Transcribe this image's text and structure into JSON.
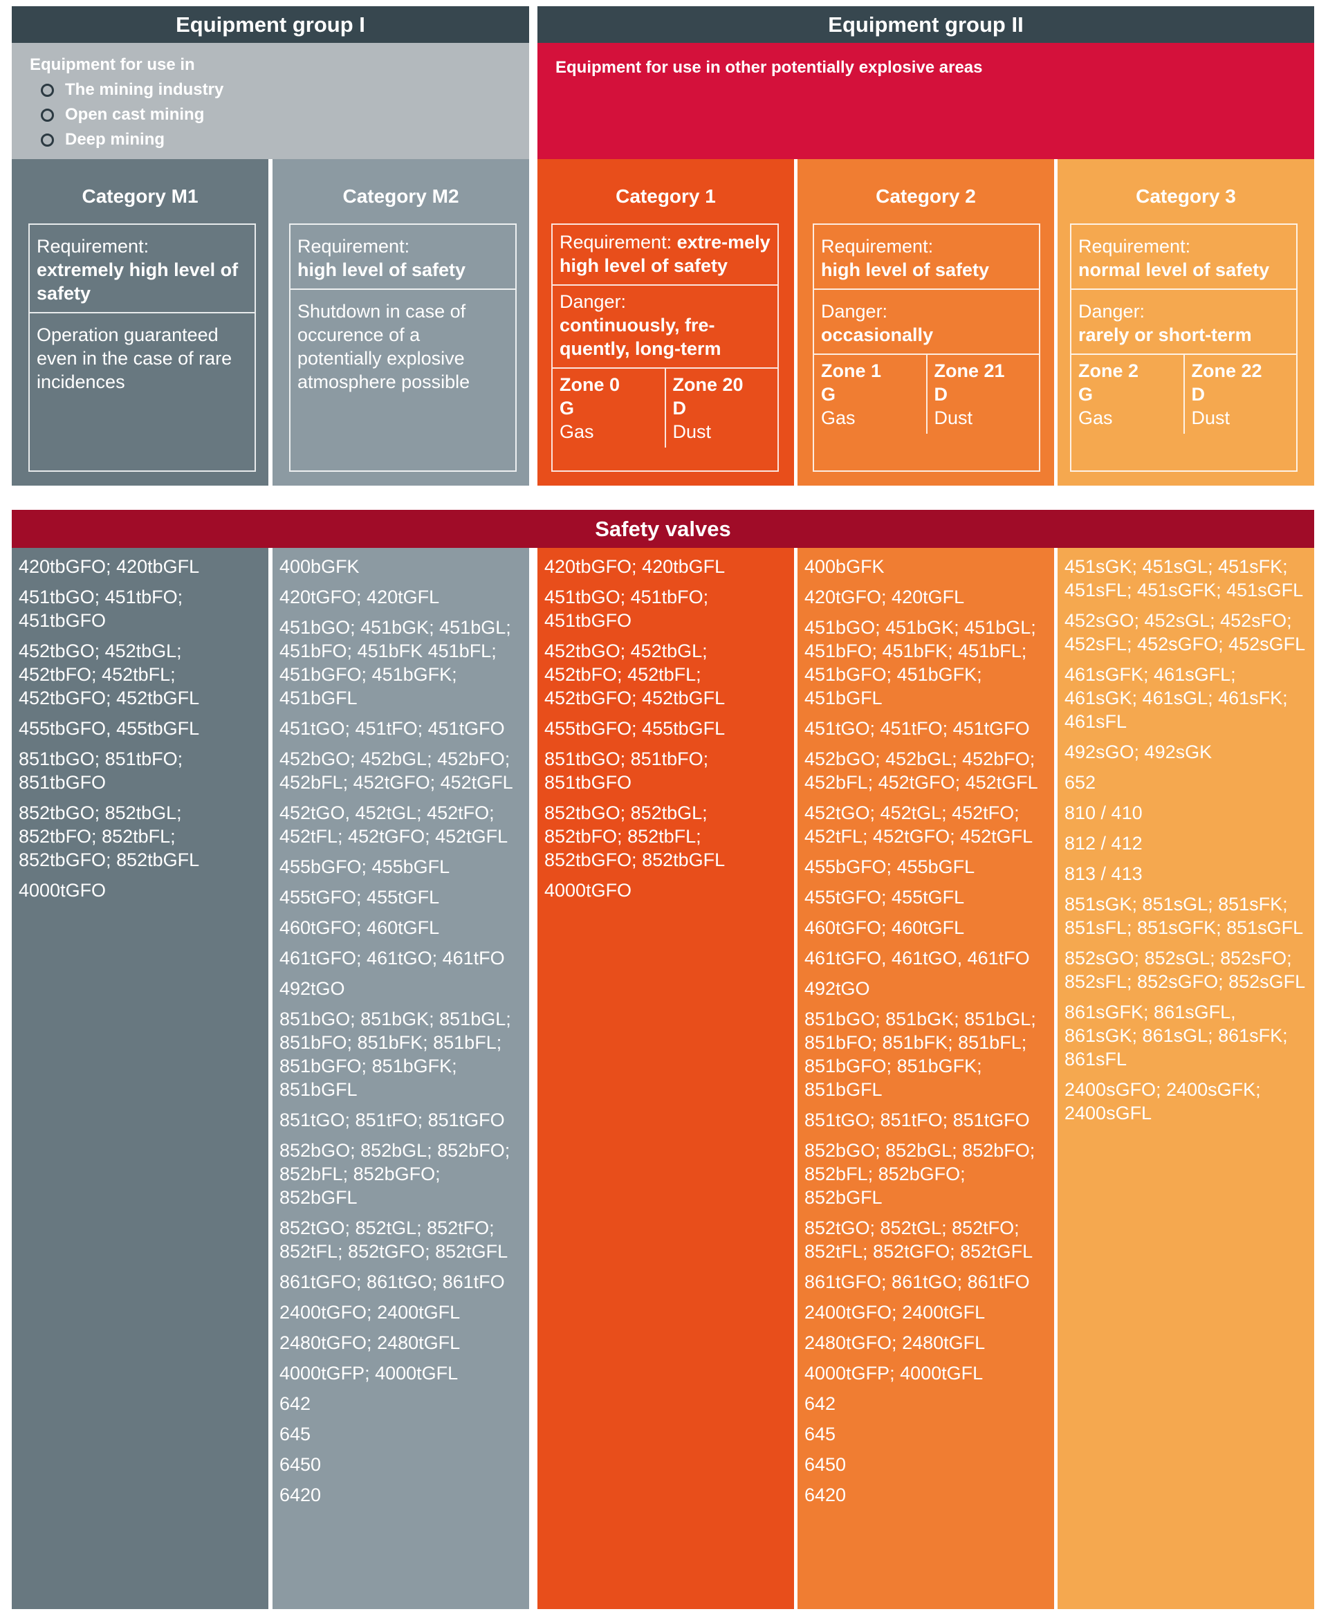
{
  "group1": {
    "title": "Equipment group I",
    "intro": "Equipment for use in",
    "bullets": [
      "The mining industry",
      "Open cast mining",
      "Deep mining"
    ]
  },
  "group2": {
    "title": "Equipment group II",
    "intro": "Equipment for use in other potentially explosive areas"
  },
  "categories": [
    {
      "title": "Category M1",
      "req_label": "Requirement:",
      "req_value": "extremely high level of safety",
      "note": "Operation guaranteed even in the case of rare incidences"
    },
    {
      "title": "Category M2",
      "req_label": "Requirement:",
      "req_value": "high level of safety",
      "note": "Shutdown in case of occurence of a potentially explosive atmosphere possible"
    },
    {
      "title": "Category 1",
      "req_label": "Requirement:",
      "req_value": "extre-mely high level of safety",
      "danger_label": "Danger:",
      "danger_value": "continuously, fre-quently, long-term",
      "zones": [
        {
          "zone": "Zone 0",
          "code": "G",
          "type": "Gas"
        },
        {
          "zone": "Zone 20",
          "code": "D",
          "type": "Dust"
        }
      ]
    },
    {
      "title": "Category 2",
      "req_label": "Requirement:",
      "req_value": "high level of safety",
      "danger_label": "Danger:",
      "danger_value": "occasionally",
      "zones": [
        {
          "zone": "Zone 1",
          "code": "G",
          "type": "Gas"
        },
        {
          "zone": "Zone 21",
          "code": "D",
          "type": "Dust"
        }
      ]
    },
    {
      "title": "Category 3",
      "req_label": "Requirement:",
      "req_value": "normal level of safety",
      "danger_label": "Danger:",
      "danger_value": "rarely or short-term",
      "zones": [
        {
          "zone": "Zone 2",
          "code": "G",
          "type": "Gas"
        },
        {
          "zone": "Zone 22",
          "code": "D",
          "type": "Dust"
        }
      ]
    }
  ],
  "safety_valves": {
    "title": "Safety valves",
    "columns": [
      [
        "420tbGFO; 420tbGFL",
        "451tbGO; 451tbFO; 451tbGFO",
        "452tbGO; 452tbGL; 452tbFO; 452tbFL; 452tbGFO; 452tbGFL",
        "455tbGFO, 455tbGFL",
        "851tbGO; 851tbFO; 851tbGFO",
        "852tbGO; 852tbGL; 852tbFO; 852tbFL; 852tbGFO; 852tbGFL",
        "4000tGFO"
      ],
      [
        "400bGFK",
        "420tGFO; 420tGFL",
        "451bGO; 451bGK; 451bGL; 451bFO; 451bFK 451bFL; 451bGFO; 451bGFK; 451bGFL",
        "451tGO; 451tFO; 451tGFO",
        "452bGO; 452bGL; 452bFO; 452bFL; 452tGFO; 452tGFL",
        "452tGO, 452tGL; 452tFO; 452tFL; 452tGFO; 452tGFL",
        "455bGFO; 455bGFL",
        "455tGFO; 455tGFL",
        "460tGFO; 460tGFL",
        "461tGFO; 461tGO; 461tFO",
        "492tGO",
        "851bGO; 851bGK; 851bGL; 851bFO; 851bFK; 851bFL; 851bGFO; 851bGFK; 851bGFL",
        "851tGO; 851tFO; 851tGFO",
        "852bGO; 852bGL; 852bFO; 852bFL; 852bGFO; 852bGFL",
        "852tGO; 852tGL; 852tFO; 852tFL; 852tGFO; 852tGFL",
        "861tGFO; 861tGO; 861tFO",
        "2400tGFO; 2400tGFL",
        "2480tGFO; 2480tGFL",
        "4000tGFP; 4000tGFL",
        "642",
        "645",
        "6450",
        "6420"
      ],
      [
        "420tbGFO; 420tbGFL",
        "451tbGO; 451tbFO; 451tbGFO",
        "452tbGO; 452tbGL; 452tbFO; 452tbFL; 452tbGFO; 452tbGFL",
        "455tbGFO; 455tbGFL",
        "851tbGO; 851tbFO; 851tbGFO",
        "852tbGO; 852tbGL; 852tbFO; 852tbFL; 852tbGFO; 852tbGFL",
        "4000tGFO"
      ],
      [
        "400bGFK",
        "420tGFO; 420tGFL",
        "451bGO; 451bGK; 451bGL; 451bFO; 451bFK; 451bFL; 451bGFO; 451bGFK; 451bGFL",
        "451tGO; 451tFO; 451tGFO",
        "452bGO; 452bGL; 452bFO; 452bFL; 452tGFO; 452tGFL",
        "452tGO; 452tGL; 452tFO; 452tFL; 452tGFO; 452tGFL",
        "455bGFO; 455bGFL",
        "455tGFO; 455tGFL",
        "460tGFO; 460tGFL",
        "461tGFO, 461tGO, 461tFO",
        "492tGO",
        "851bGO; 851bGK; 851bGL; 851bFO; 851bFK; 851bFL; 851bGFO; 851bGFK; 851bGFL",
        "851tGO; 851tFO; 851tGFO",
        "852bGO; 852bGL; 852bFO; 852bFL; 852bGFO; 852bGFL",
        "852tGO; 852tGL; 852tFO; 852tFL; 852tGFO; 852tGFL",
        "861tGFO; 861tGO; 861tFO",
        "2400tGFO; 2400tGFL",
        "2480tGFO; 2480tGFL",
        "4000tGFP; 4000tGFL",
        "642",
        "645",
        "6450",
        "6420"
      ],
      [
        "451sGK; 451sGL; 451sFK; 451sFL; 451sGFK; 451sGFL",
        "452sGO; 452sGL; 452sFO; 452sFL; 452sGFO; 452sGFL",
        "461sGFK; 461sGFL; 461sGK; 461sGL; 461sFK; 461sFL",
        "492sGO; 492sGK",
        "652",
        "810 / 410",
        "812 / 412",
        "813 / 413",
        "851sGK; 851sGL; 851sFK; 851sFL; 851sGFK; 851sGFL",
        "852sGO; 852sGL; 852sFO; 852sFL; 852sGFO; 852sGFL",
        "861sGFK; 861sGFL, 861sGK; 861sGL; 861sFK; 861sFL",
        "2400sGFO; 2400sGFK; 2400sGFL"
      ]
    ]
  },
  "colors": {
    "header_dark": "#37474f",
    "group1_bg": "#b3b9bd",
    "group2_bg": "#d4113b",
    "safety_header": "#a00c28",
    "m1": "#687880",
    "m2": "#8c9aa2",
    "cat1": "#e84e1b",
    "cat2": "#f07d32",
    "cat3": "#f5a84f"
  }
}
